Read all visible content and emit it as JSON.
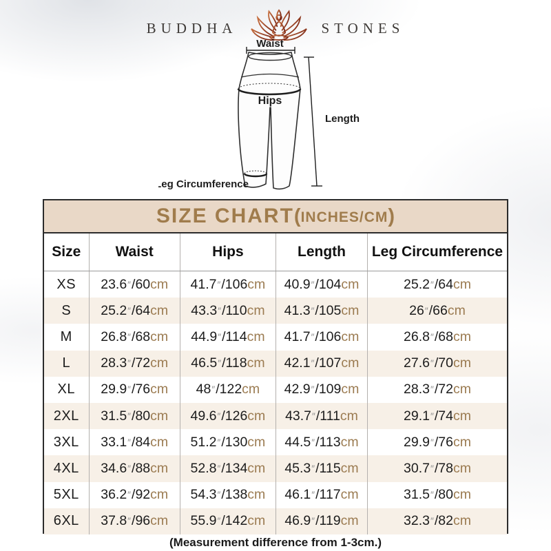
{
  "brand": {
    "name_left": "BUDDHA",
    "name_right": "STONES"
  },
  "diagram": {
    "labels": {
      "waist": "Waist",
      "hips": "Hips",
      "length": "Length",
      "leg_circumference": "Leg Circumference"
    }
  },
  "size_chart": {
    "title_main": "SIZE CHART",
    "title_paren_open": "(",
    "title_units": "INCHES/CM",
    "title_paren_close": ")",
    "columns": [
      "Size",
      "Waist",
      "Hips",
      "Length",
      "Leg Circumference"
    ],
    "units": {
      "inch_mark": "″",
      "separator": "/",
      "cm_unit": "cm"
    },
    "rows": [
      {
        "size": "XS",
        "waist": {
          "in": "23.6",
          "cm": "60"
        },
        "hips": {
          "in": "41.7",
          "cm": "106"
        },
        "length": {
          "in": "40.9",
          "cm": "104"
        },
        "leg": {
          "in": "25.2",
          "cm": "64"
        }
      },
      {
        "size": "S",
        "waist": {
          "in": "25.2",
          "cm": "64"
        },
        "hips": {
          "in": "43.3",
          "cm": "110"
        },
        "length": {
          "in": "41.3",
          "cm": "105"
        },
        "leg": {
          "in": "26",
          "cm": "66"
        }
      },
      {
        "size": "M",
        "waist": {
          "in": "26.8",
          "cm": "68"
        },
        "hips": {
          "in": "44.9",
          "cm": "114"
        },
        "length": {
          "in": "41.7",
          "cm": "106"
        },
        "leg": {
          "in": "26.8",
          "cm": "68"
        }
      },
      {
        "size": "L",
        "waist": {
          "in": "28.3",
          "cm": "72"
        },
        "hips": {
          "in": "46.5",
          "cm": "118"
        },
        "length": {
          "in": "42.1",
          "cm": "107"
        },
        "leg": {
          "in": "27.6",
          "cm": "70"
        }
      },
      {
        "size": "XL",
        "waist": {
          "in": "29.9",
          "cm": "76"
        },
        "hips": {
          "in": "48",
          "cm": "122"
        },
        "length": {
          "in": "42.9",
          "cm": "109"
        },
        "leg": {
          "in": "28.3",
          "cm": "72"
        }
      },
      {
        "size": "2XL",
        "waist": {
          "in": "31.5",
          "cm": "80"
        },
        "hips": {
          "in": "49.6",
          "cm": "126"
        },
        "length": {
          "in": "43.7",
          "cm": "111"
        },
        "leg": {
          "in": "29.1",
          "cm": "74"
        }
      },
      {
        "size": "3XL",
        "waist": {
          "in": "33.1",
          "cm": "84"
        },
        "hips": {
          "in": "51.2",
          "cm": "130"
        },
        "length": {
          "in": "44.5",
          "cm": "113"
        },
        "leg": {
          "in": "29.9",
          "cm": "76"
        }
      },
      {
        "size": "4XL",
        "waist": {
          "in": "34.6",
          "cm": "88"
        },
        "hips": {
          "in": "52.8",
          "cm": "134"
        },
        "length": {
          "in": "45.3",
          "cm": "115"
        },
        "leg": {
          "in": "30.7",
          "cm": "78"
        }
      },
      {
        "size": "5XL",
        "waist": {
          "in": "36.2",
          "cm": "92"
        },
        "hips": {
          "in": "54.3",
          "cm": "138"
        },
        "length": {
          "in": "46.1",
          "cm": "117"
        },
        "leg": {
          "in": "31.5",
          "cm": "80"
        }
      },
      {
        "size": "6XL",
        "waist": {
          "in": "37.8",
          "cm": "96"
        },
        "hips": {
          "in": "55.9",
          "cm": "142"
        },
        "length": {
          "in": "46.9",
          "cm": "119"
        },
        "leg": {
          "in": "32.3",
          "cm": "82"
        }
      }
    ]
  },
  "footnote": "(Measurement difference from 1-3cm.)",
  "colors": {
    "accent_gold": "#a07c4c",
    "title_band_bg": "#e9d8c7",
    "row_alt_bg": "#f7f0e7",
    "cm_unit_color": "#9b7b51",
    "inch_mark_color": "#8f8f8f",
    "lotus_gradient_from": "#c8703f",
    "lotus_gradient_to": "#7a2716"
  }
}
